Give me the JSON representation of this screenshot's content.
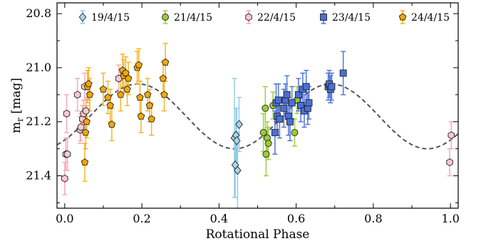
{
  "chart_data": {
    "type": "scatter",
    "xlabel": "Rotational Phase",
    "ylabel_main": "m",
    "ylabel_sub": "r",
    "ylabel_unit": " [mag]",
    "xlim": [
      -0.02,
      1.02
    ],
    "ylim": [
      21.52,
      20.76
    ],
    "y_inverted": true,
    "x_ticks": [
      0.0,
      0.2,
      0.4,
      0.6,
      0.8,
      1.0
    ],
    "x_tick_labels": [
      "0.0",
      "0.2",
      "0.4",
      "0.6",
      "0.8",
      "1.0"
    ],
    "y_ticks": [
      20.8,
      21.0,
      21.2,
      21.4
    ],
    "y_tick_labels": [
      "20.8",
      "21.0",
      "21.2",
      "21.4"
    ],
    "legend_position": "top",
    "model_curve": {
      "style": "dashed",
      "color": "#555555",
      "mean": 21.18,
      "amplitude": 0.12,
      "harmonic": 2,
      "peak_phase": 0.19
    },
    "series": [
      {
        "name": "19/4/15",
        "marker": "diamond",
        "color": "#a8d8ea",
        "error_color": "#8ecae6",
        "points": [
          {
            "x": 0.44,
            "y": 21.26,
            "err": 0.22
          },
          {
            "x": 0.442,
            "y": 21.36,
            "err": 0.12
          },
          {
            "x": 0.444,
            "y": 21.25,
            "err": 0.1
          },
          {
            "x": 0.446,
            "y": 21.27,
            "err": 0.12
          },
          {
            "x": 0.448,
            "y": 21.38,
            "err": 0.14
          },
          {
            "x": 0.452,
            "y": 21.21,
            "err": 0.1
          }
        ]
      },
      {
        "name": "21/4/15",
        "marker": "circle",
        "color": "#9acd32",
        "error_color": "#9acd32",
        "points": [
          {
            "x": 0.515,
            "y": 21.24,
            "err": 0.07
          },
          {
            "x": 0.52,
            "y": 21.15,
            "err": 0.08
          },
          {
            "x": 0.522,
            "y": 21.32,
            "err": 0.08
          },
          {
            "x": 0.525,
            "y": 21.26,
            "err": 0.06
          },
          {
            "x": 0.528,
            "y": 21.28,
            "err": 0.06
          },
          {
            "x": 0.54,
            "y": 21.14,
            "err": 0.05
          },
          {
            "x": 0.596,
            "y": 21.24,
            "err": 0.05
          },
          {
            "x": 0.602,
            "y": 21.12,
            "err": 0.05
          }
        ]
      },
      {
        "name": "22/4/15",
        "marker": "hexagon",
        "color": "#f8c8d0",
        "error_color": "#f4a7b4",
        "points": [
          {
            "x": 0.0,
            "y": 21.41,
            "err": 0.06
          },
          {
            "x": 0.003,
            "y": 21.32,
            "err": 0.06
          },
          {
            "x": 0.005,
            "y": 21.17,
            "err": 0.07
          },
          {
            "x": 0.007,
            "y": 21.32,
            "err": 0.06
          },
          {
            "x": 0.033,
            "y": 21.1,
            "err": 0.06
          },
          {
            "x": 0.04,
            "y": 21.23,
            "err": 0.05
          },
          {
            "x": 0.042,
            "y": 21.22,
            "err": 0.05
          },
          {
            "x": 0.046,
            "y": 21.19,
            "err": 0.05
          },
          {
            "x": 0.049,
            "y": 21.17,
            "err": 0.05
          },
          {
            "x": 0.052,
            "y": 21.07,
            "err": 0.05
          },
          {
            "x": 0.055,
            "y": 21.16,
            "err": 0.05
          },
          {
            "x": 0.14,
            "y": 21.04,
            "err": 0.05
          },
          {
            "x": 0.998,
            "y": 21.35,
            "err": 0.05
          },
          {
            "x": 1.002,
            "y": 21.25,
            "err": 0.05
          }
        ]
      },
      {
        "name": "23/4/15",
        "marker": "square",
        "color": "#4a6fd8",
        "error_color": "#4a6fd8",
        "points": [
          {
            "x": 0.545,
            "y": 21.24,
            "err": 0.08
          },
          {
            "x": 0.548,
            "y": 21.13,
            "err": 0.07
          },
          {
            "x": 0.551,
            "y": 21.18,
            "err": 0.07
          },
          {
            "x": 0.554,
            "y": 21.12,
            "err": 0.06
          },
          {
            "x": 0.557,
            "y": 21.19,
            "err": 0.07
          },
          {
            "x": 0.568,
            "y": 21.15,
            "err": 0.07
          },
          {
            "x": 0.572,
            "y": 21.12,
            "err": 0.06
          },
          {
            "x": 0.576,
            "y": 21.1,
            "err": 0.07
          },
          {
            "x": 0.58,
            "y": 21.18,
            "err": 0.07
          },
          {
            "x": 0.584,
            "y": 21.2,
            "err": 0.07
          },
          {
            "x": 0.589,
            "y": 21.13,
            "err": 0.06
          },
          {
            "x": 0.606,
            "y": 21.1,
            "err": 0.06
          },
          {
            "x": 0.612,
            "y": 21.14,
            "err": 0.06
          },
          {
            "x": 0.617,
            "y": 21.08,
            "err": 0.06
          },
          {
            "x": 0.621,
            "y": 21.16,
            "err": 0.06
          },
          {
            "x": 0.626,
            "y": 21.07,
            "err": 0.06
          },
          {
            "x": 0.63,
            "y": 21.15,
            "err": 0.06
          },
          {
            "x": 0.633,
            "y": 21.13,
            "err": 0.06
          },
          {
            "x": 0.683,
            "y": 21.07,
            "err": 0.05
          },
          {
            "x": 0.686,
            "y": 21.06,
            "err": 0.05
          },
          {
            "x": 0.689,
            "y": 21.08,
            "err": 0.05
          },
          {
            "x": 0.692,
            "y": 21.07,
            "err": 0.05
          },
          {
            "x": 0.722,
            "y": 21.02,
            "err": 0.08
          }
        ]
      },
      {
        "name": "24/4/15",
        "marker": "pentagon",
        "color": "#f5a800",
        "error_color": "#f5b21e",
        "points": [
          {
            "x": 0.052,
            "y": 21.35,
            "err": 0.07
          },
          {
            "x": 0.054,
            "y": 21.24,
            "err": 0.06
          },
          {
            "x": 0.057,
            "y": 21.2,
            "err": 0.06
          },
          {
            "x": 0.059,
            "y": 21.07,
            "err": 0.06
          },
          {
            "x": 0.062,
            "y": 21.06,
            "err": 0.06
          },
          {
            "x": 0.065,
            "y": 21.1,
            "err": 0.06
          },
          {
            "x": 0.1,
            "y": 21.08,
            "err": 0.06
          },
          {
            "x": 0.112,
            "y": 21.11,
            "err": 0.06
          },
          {
            "x": 0.118,
            "y": 21.14,
            "err": 0.06
          },
          {
            "x": 0.122,
            "y": 21.21,
            "err": 0.06
          },
          {
            "x": 0.145,
            "y": 21.1,
            "err": 0.06
          },
          {
            "x": 0.15,
            "y": 21.01,
            "err": 0.06
          },
          {
            "x": 0.153,
            "y": 21.03,
            "err": 0.06
          },
          {
            "x": 0.158,
            "y": 21.02,
            "err": 0.06
          },
          {
            "x": 0.162,
            "y": 21.08,
            "err": 0.06
          },
          {
            "x": 0.165,
            "y": 21.04,
            "err": 0.06
          },
          {
            "x": 0.188,
            "y": 21.0,
            "err": 0.06
          },
          {
            "x": 0.192,
            "y": 20.99,
            "err": 0.06
          },
          {
            "x": 0.195,
            "y": 21.11,
            "err": 0.06
          },
          {
            "x": 0.198,
            "y": 21.18,
            "err": 0.06
          },
          {
            "x": 0.215,
            "y": 21.1,
            "err": 0.06
          },
          {
            "x": 0.22,
            "y": 21.14,
            "err": 0.06
          },
          {
            "x": 0.225,
            "y": 21.19,
            "err": 0.06
          },
          {
            "x": 0.255,
            "y": 21.04,
            "err": 0.06
          },
          {
            "x": 0.258,
            "y": 21.1,
            "err": 0.06
          },
          {
            "x": 0.261,
            "y": 20.98,
            "err": 0.07
          }
        ]
      }
    ]
  }
}
